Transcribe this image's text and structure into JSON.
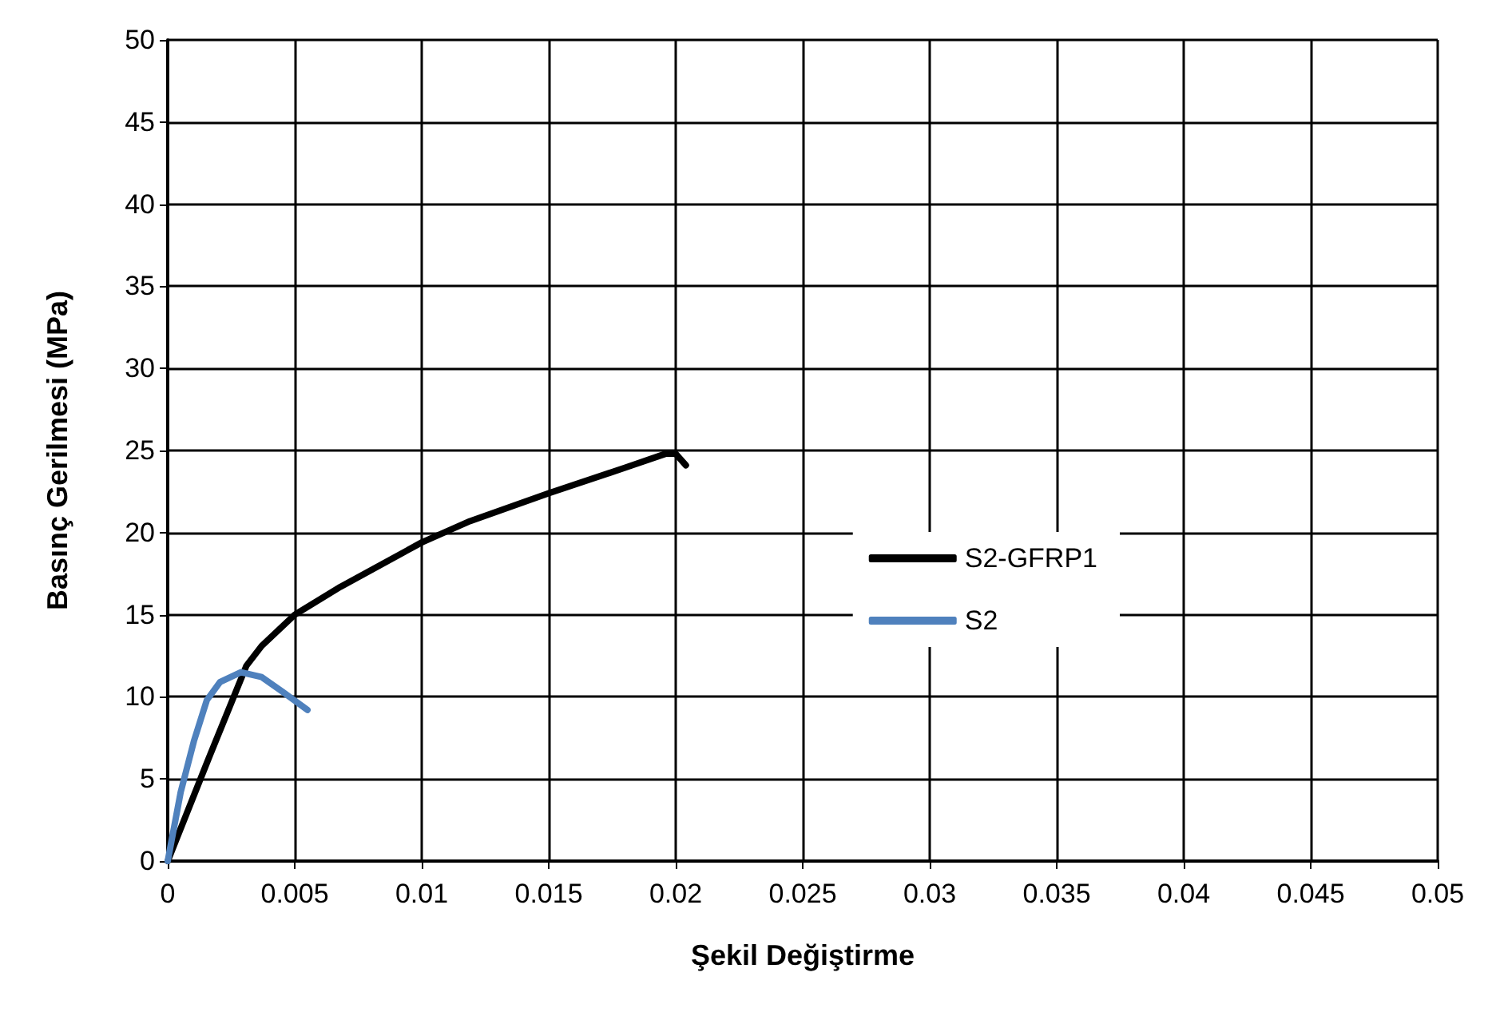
{
  "chart_data": {
    "type": "line",
    "xlabel": "Şekil Değiştirme",
    "ylabel": "Basınç Gerilmesi (MPa)",
    "xlim": [
      0,
      0.05
    ],
    "xticks": [
      0,
      0.005,
      0.01,
      0.015,
      0.02,
      0.025,
      0.03,
      0.035,
      0.04,
      0.045,
      0.05
    ],
    "ylim": [
      0,
      50
    ],
    "yticks": [
      0,
      5,
      10,
      15,
      20,
      25,
      30,
      35,
      40,
      45,
      50
    ],
    "grid": true,
    "legend": "right",
    "marker": "none",
    "line_style": "solid",
    "series": [
      {
        "name": "S2-GFRP1",
        "color": "#000000",
        "x": [
          0,
          0.00165,
          0.0031,
          0.0037,
          0.005,
          0.0068,
          0.01,
          0.0119,
          0.015,
          0.0181,
          0.0196,
          0.02,
          0.0204
        ],
        "values": [
          0,
          6.4,
          11.9,
          13.1,
          15.0,
          16.7,
          19.4,
          20.7,
          22.4,
          24.0,
          24.8,
          24.8,
          24.1
        ]
      },
      {
        "name": "S2",
        "color": "#4f81bd",
        "x": [
          0,
          0.00051,
          0.00103,
          0.00154,
          0.00206,
          0.00288,
          0.0037,
          0.00453,
          0.0055
        ],
        "values": [
          0,
          4.2,
          7.3,
          9.8,
          10.9,
          11.5,
          11.2,
          10.3,
          9.2
        ]
      }
    ]
  }
}
